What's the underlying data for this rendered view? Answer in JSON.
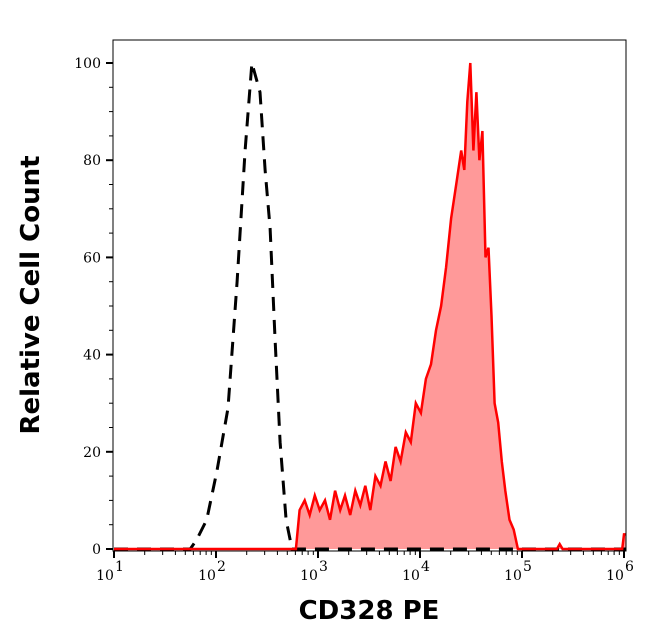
{
  "chart_data": {
    "type": "area",
    "title": "",
    "xlabel": "CD328 PE",
    "ylabel": "Relative Cell Count",
    "xscale": "log",
    "xlim": [
      10,
      1050000
    ],
    "ylim": [
      0,
      105
    ],
    "grid": false,
    "x_ticks": [
      {
        "base": "10",
        "exp": "1",
        "value": 10
      },
      {
        "base": "10",
        "exp": "2",
        "value": 100
      },
      {
        "base": "10",
        "exp": "3",
        "value": 1000
      },
      {
        "base": "10",
        "exp": "4",
        "value": 10000
      },
      {
        "base": "10",
        "exp": "5",
        "value": 100000
      },
      {
        "base": "10",
        "exp": "6",
        "value": 1000000
      }
    ],
    "y_ticks": [
      {
        "label": "0",
        "value": 0
      },
      {
        "label": "20",
        "value": 20
      },
      {
        "label": "40",
        "value": 40
      },
      {
        "label": "60",
        "value": 60
      },
      {
        "label": "80",
        "value": 80
      },
      {
        "label": "100",
        "value": 100
      }
    ],
    "series": [
      {
        "style": "dashed-line",
        "color": "#000000",
        "x": [
          10,
          56,
          65,
          81,
          102,
          131,
          161,
          193,
          225,
          270,
          303,
          339,
          380,
          425,
          487,
          556,
          1050000
        ],
        "y": [
          0,
          0,
          2,
          6,
          16,
          29,
          55,
          82,
          100,
          94,
          78,
          66,
          43,
          22,
          6,
          0,
          0
        ]
      },
      {
        "style": "filled-line",
        "color": "#ff0000",
        "fill": "#ff9999",
        "x": [
          10,
          607,
          660,
          740,
          830,
          930,
          1040,
          1170,
          1310,
          1470,
          1650,
          1840,
          2070,
          2320,
          2600,
          2910,
          3260,
          3650,
          4100,
          4590,
          5150,
          5770,
          6460,
          7250,
          8120,
          9100,
          10200,
          11430,
          12810,
          14360,
          16090,
          18030,
          20200,
          22640,
          25370,
          27170,
          29080,
          31140,
          33350,
          35700,
          38240,
          40940,
          43840,
          46950,
          50270,
          53830,
          58380,
          63310,
          68660,
          75480,
          82970,
          91220,
          220000,
          234000,
          250000,
          960000,
          1000000,
          1050000
        ],
        "y": [
          0,
          0,
          8,
          10,
          7,
          11,
          8,
          10,
          6,
          12,
          8,
          11,
          7,
          12,
          9,
          13,
          8,
          15,
          13,
          18,
          14,
          21,
          18,
          24,
          22,
          30,
          28,
          35,
          38,
          45,
          50,
          58,
          68,
          75,
          82,
          78,
          92,
          100,
          82,
          94,
          80,
          86,
          60,
          62,
          48,
          30,
          26,
          18,
          12,
          6,
          4,
          0,
          0,
          1,
          0,
          0,
          3,
          3
        ]
      }
    ]
  }
}
